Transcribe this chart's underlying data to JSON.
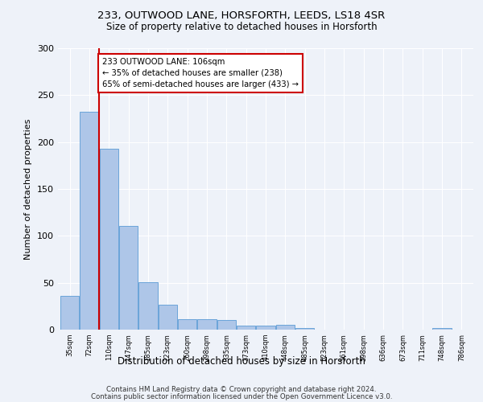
{
  "title1": "233, OUTWOOD LANE, HORSFORTH, LEEDS, LS18 4SR",
  "title2": "Size of property relative to detached houses in Horsforth",
  "xlabel": "Distribution of detached houses by size in Horsforth",
  "ylabel": "Number of detached properties",
  "bar_color": "#aec6e8",
  "bar_edge_color": "#5b9bd5",
  "categories": [
    "35sqm",
    "72sqm",
    "110sqm",
    "147sqm",
    "185sqm",
    "223sqm",
    "260sqm",
    "298sqm",
    "335sqm",
    "373sqm",
    "410sqm",
    "448sqm",
    "485sqm",
    "523sqm",
    "561sqm",
    "598sqm",
    "636sqm",
    "673sqm",
    "711sqm",
    "748sqm",
    "786sqm"
  ],
  "values": [
    36,
    232,
    193,
    111,
    51,
    27,
    11,
    11,
    10,
    4,
    4,
    5,
    2,
    0,
    0,
    0,
    0,
    0,
    0,
    2,
    0
  ],
  "ylim": [
    0,
    300
  ],
  "yticks": [
    0,
    50,
    100,
    150,
    200,
    250,
    300
  ],
  "vline_color": "#cc0000",
  "annotation_text": "233 OUTWOOD LANE: 106sqm\n← 35% of detached houses are smaller (238)\n65% of semi-detached houses are larger (433) →",
  "annotation_box_color": "#ffffff",
  "annotation_box_edge": "#cc0000",
  "footer1": "Contains HM Land Registry data © Crown copyright and database right 2024.",
  "footer2": "Contains public sector information licensed under the Open Government Licence v3.0.",
  "bg_color": "#eef2f9",
  "grid_color": "#ffffff"
}
